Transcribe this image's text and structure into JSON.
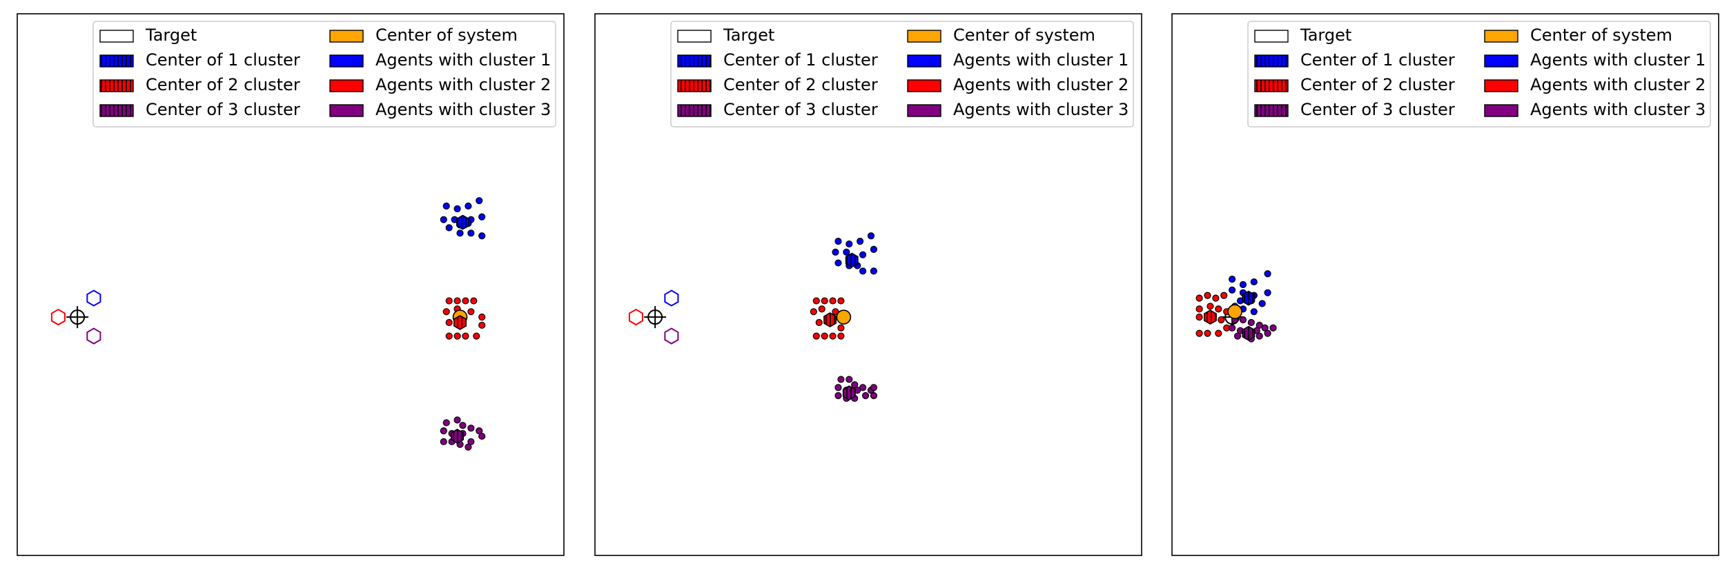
{
  "chart_data": [
    {
      "type": "scatter",
      "panel": 1,
      "xlim": [
        0,
        100
      ],
      "ylim": [
        0,
        100
      ],
      "axes_ticks": false,
      "legend": {
        "placement": "top-right",
        "columns": 2
      },
      "target": {
        "x": 11,
        "y": 44
      },
      "center_of_system": {
        "x": 81,
        "y": 44
      },
      "hexagons": [
        {
          "x": 14,
          "y": 47.5,
          "color": "#0000ff"
        },
        {
          "x": 7.5,
          "y": 44,
          "color": "#ff0000"
        },
        {
          "x": 14,
          "y": 40.5,
          "color": "#800080"
        }
      ],
      "clusters": [
        {
          "name": "cluster 1",
          "color": "#0000ff",
          "center": {
            "x": 81.5,
            "y": 61.5
          },
          "agents": [
            [
              78.5,
              64.5
            ],
            [
              80.5,
              64
            ],
            [
              82.5,
              64.5
            ],
            [
              84.5,
              65.5
            ],
            [
              78,
              62
            ],
            [
              80,
              62
            ],
            [
              81,
              61
            ],
            [
              83,
              62
            ],
            [
              85,
              62.5
            ],
            [
              81,
              59.5
            ],
            [
              83,
              59.5
            ],
            [
              85,
              59
            ],
            [
              79,
              60.5
            ],
            [
              82.5,
              61.3
            ]
          ]
        },
        {
          "name": "cluster 2",
          "color": "#ff0000",
          "center": {
            "x": 81,
            "y": 43
          },
          "agents": [
            [
              79,
              47
            ],
            [
              80.5,
              47
            ],
            [
              82,
              47
            ],
            [
              83.5,
              47
            ],
            [
              78.5,
              45
            ],
            [
              80.5,
              45.5
            ],
            [
              83,
              45
            ],
            [
              85,
              44
            ],
            [
              79,
              43
            ],
            [
              85,
              42.5
            ],
            [
              79,
              40.5
            ],
            [
              80.5,
              40.5
            ],
            [
              82,
              40.5
            ],
            [
              84,
              40.5
            ]
          ]
        },
        {
          "name": "cluster 3",
          "color": "#800080",
          "center": {
            "x": 80.5,
            "y": 22
          },
          "agents": [
            [
              78.5,
              24.5
            ],
            [
              80.5,
              25
            ],
            [
              81.5,
              24
            ],
            [
              83,
              23.5
            ],
            [
              84.5,
              23
            ],
            [
              85,
              22
            ],
            [
              78,
              23
            ],
            [
              79.5,
              22.5
            ],
            [
              81.5,
              22.5
            ],
            [
              78,
              21
            ],
            [
              79.5,
              21
            ],
            [
              81,
              20.5
            ],
            [
              83,
              21
            ],
            [
              82.5,
              20
            ]
          ]
        }
      ]
    },
    {
      "type": "scatter",
      "panel": 2,
      "xlim": [
        0,
        100
      ],
      "ylim": [
        0,
        100
      ],
      "axes_ticks": false,
      "legend": {
        "placement": "top-right",
        "columns": 2
      },
      "target": {
        "x": 11,
        "y": 44
      },
      "center_of_system": {
        "x": 45.5,
        "y": 44
      },
      "hexagons": [
        {
          "x": 14,
          "y": 47.5,
          "color": "#0000ff"
        },
        {
          "x": 7.5,
          "y": 44,
          "color": "#ff0000"
        },
        {
          "x": 14,
          "y": 40.5,
          "color": "#800080"
        }
      ],
      "clusters": [
        {
          "name": "cluster 1",
          "color": "#0000ff",
          "center": {
            "x": 47,
            "y": 54.5
          },
          "agents": [
            [
              44.5,
              58
            ],
            [
              46.5,
              57.5
            ],
            [
              48.5,
              58
            ],
            [
              50.5,
              59
            ],
            [
              44,
              56
            ],
            [
              46,
              56
            ],
            [
              47,
              55
            ],
            [
              49,
              55.5
            ],
            [
              51,
              56.5
            ],
            [
              44.5,
              54
            ],
            [
              46.5,
              53.5
            ],
            [
              48,
              53.5
            ],
            [
              49,
              52.5
            ],
            [
              51,
              52.5
            ]
          ]
        },
        {
          "name": "cluster 2",
          "color": "#ff0000",
          "center": {
            "x": 43,
            "y": 43.5
          },
          "agents": [
            [
              40.5,
              47
            ],
            [
              42,
              47
            ],
            [
              43.5,
              47
            ],
            [
              45,
              47
            ],
            [
              40,
              45
            ],
            [
              41.5,
              45.5
            ],
            [
              44,
              45
            ],
            [
              45.5,
              44
            ],
            [
              41,
              43
            ],
            [
              45,
              42
            ],
            [
              40.5,
              40.5
            ],
            [
              42,
              40.5
            ],
            [
              43.5,
              40.5
            ],
            [
              45,
              40.5
            ]
          ]
        },
        {
          "name": "cluster 3",
          "color": "#800080",
          "center": {
            "x": 46.5,
            "y": 30
          },
          "agents": [
            [
              45,
              32.5
            ],
            [
              46.5,
              32.5
            ],
            [
              47.5,
              31.5
            ],
            [
              49,
              31
            ],
            [
              50.5,
              30.5
            ],
            [
              51,
              31
            ],
            [
              44.5,
              31
            ],
            [
              46,
              30.5
            ],
            [
              48,
              30.5
            ],
            [
              44.5,
              29.5
            ],
            [
              46,
              29
            ],
            [
              47.5,
              29
            ],
            [
              49.5,
              29.5
            ],
            [
              51,
              29.5
            ]
          ]
        }
      ]
    },
    {
      "type": "scatter",
      "panel": 3,
      "xlim": [
        0,
        100
      ],
      "ylim": [
        0,
        100
      ],
      "axes_ticks": false,
      "legend": {
        "placement": "top-right",
        "columns": 2
      },
      "target": {
        "x": 11,
        "y": 44
      },
      "center_of_system": {
        "x": 11.5,
        "y": 45
      },
      "hexagons": [],
      "clusters": [
        {
          "name": "cluster 1",
          "color": "#0000ff",
          "center": {
            "x": 14,
            "y": 47.5
          },
          "agents": [
            [
              11,
              51
            ],
            [
              13,
              50
            ],
            [
              15,
              50.5
            ],
            [
              17.5,
              52
            ],
            [
              11,
              49
            ],
            [
              13,
              48.5
            ],
            [
              15,
              48
            ],
            [
              17.5,
              48.5
            ],
            [
              12.5,
              47
            ],
            [
              14.5,
              47
            ],
            [
              16.5,
              46.5
            ],
            [
              11.5,
              46
            ],
            [
              13,
              45.5
            ],
            [
              15,
              45
            ]
          ]
        },
        {
          "name": "cluster 2",
          "color": "#ff0000",
          "center": {
            "x": 7,
            "y": 44
          },
          "agents": [
            [
              5,
              47.5
            ],
            [
              6.5,
              48
            ],
            [
              8,
              47.5
            ],
            [
              9.5,
              48
            ],
            [
              5,
              45.5
            ],
            [
              7,
              46
            ],
            [
              8.5,
              45.5
            ],
            [
              10,
              45
            ],
            [
              5,
              44
            ],
            [
              9,
              43.5
            ],
            [
              5,
              41
            ],
            [
              6.5,
              41
            ],
            [
              8.5,
              41
            ],
            [
              10,
              42
            ]
          ]
        },
        {
          "name": "cluster 3",
          "color": "#800080",
          "center": {
            "x": 14,
            "y": 41
          },
          "agents": [
            [
              11.5,
              43.5
            ],
            [
              13,
              43.5
            ],
            [
              14.5,
              43
            ],
            [
              16,
              42.5
            ],
            [
              17,
              42
            ],
            [
              18.5,
              42
            ],
            [
              11,
              42
            ],
            [
              12.5,
              41.5
            ],
            [
              15.5,
              41.5
            ],
            [
              12,
              40.5
            ],
            [
              14.5,
              40
            ],
            [
              16,
              40.5
            ],
            [
              17.5,
              41
            ],
            [
              13.5,
              41
            ]
          ]
        }
      ]
    }
  ],
  "legend_items": [
    {
      "label": "Target",
      "swatch": "target"
    },
    {
      "label": "Center of system",
      "swatch": "system"
    },
    {
      "label": "Center of 1 cluster",
      "swatch": "center1"
    },
    {
      "label": "Agents with cluster 1",
      "swatch": "agents1"
    },
    {
      "label": "Center of 2 cluster",
      "swatch": "center2"
    },
    {
      "label": "Agents with cluster 2",
      "swatch": "agents2"
    },
    {
      "label": "Center of 3 cluster",
      "swatch": "center3"
    },
    {
      "label": "Agents with cluster 3",
      "swatch": "agents3"
    }
  ],
  "colors": {
    "cluster1": "#0000ff",
    "cluster2": "#ff0000",
    "cluster3": "#800080",
    "system": "#ffa500",
    "target": "#ffffff",
    "edge": "#000000"
  }
}
